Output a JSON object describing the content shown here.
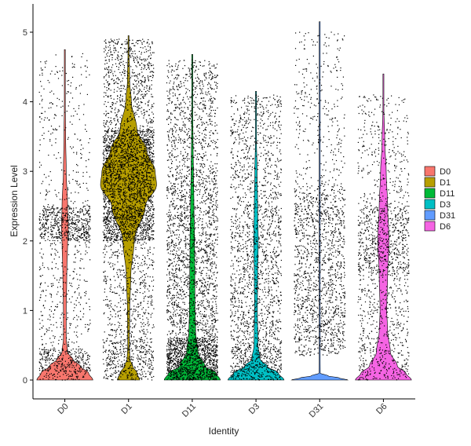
{
  "chart_data": {
    "type": "violin",
    "title": "",
    "xlabel": "Identity",
    "ylabel": "Expression Level",
    "ylim": [
      -0.3,
      5.4
    ],
    "yticks": [
      0,
      1,
      2,
      3,
      4,
      5
    ],
    "grid": false,
    "legend_position": "right",
    "categories": [
      "D0",
      "D1",
      "D11",
      "D3",
      "D31",
      "D6"
    ],
    "series": [
      {
        "name": "D0",
        "color": "#F8766D",
        "max": 4.75,
        "median": 0.05,
        "density_y": [
          0,
          0.1,
          0.2,
          0.3,
          0.4,
          0.6,
          1.0,
          1.5,
          2.0,
          2.2,
          2.5,
          3.0,
          3.5,
          4.0,
          4.75
        ],
        "density_w": [
          1.0,
          0.85,
          0.55,
          0.28,
          0.1,
          0.05,
          0.05,
          0.07,
          0.1,
          0.12,
          0.1,
          0.05,
          0.03,
          0.015,
          0.005
        ]
      },
      {
        "name": "D1",
        "color": "#B79F00",
        "max": 4.95,
        "median": 2.9,
        "density_y": [
          0,
          0.1,
          0.2,
          0.3,
          0.5,
          1.0,
          1.5,
          2.0,
          2.5,
          2.8,
          3.0,
          3.3,
          3.6,
          4.0,
          4.3,
          4.95
        ],
        "density_w": [
          0.4,
          0.3,
          0.15,
          0.05,
          0.03,
          0.04,
          0.08,
          0.2,
          0.6,
          1.0,
          0.95,
          0.65,
          0.3,
          0.1,
          0.04,
          0.005
        ]
      },
      {
        "name": "D11",
        "color": "#00BA38",
        "max": 4.68,
        "median": 0.1,
        "density_y": [
          0,
          0.1,
          0.2,
          0.4,
          0.7,
          1.0,
          1.5,
          2.0,
          2.5,
          3.0,
          3.5,
          4.0,
          4.68
        ],
        "density_w": [
          1.0,
          0.85,
          0.45,
          0.2,
          0.12,
          0.1,
          0.09,
          0.08,
          0.06,
          0.04,
          0.025,
          0.01,
          0.005
        ]
      },
      {
        "name": "D3",
        "color": "#00BFC4",
        "max": 4.15,
        "median": 0.05,
        "density_y": [
          0,
          0.1,
          0.2,
          0.3,
          0.5,
          1.0,
          1.5,
          2.0,
          2.5,
          3.0,
          3.5,
          4.15
        ],
        "density_w": [
          1.0,
          0.8,
          0.4,
          0.15,
          0.07,
          0.05,
          0.06,
          0.08,
          0.06,
          0.04,
          0.015,
          0.005
        ]
      },
      {
        "name": "D31",
        "color": "#619CFF",
        "max": 5.15,
        "median": 0.0,
        "density_y": [
          0,
          0.03,
          0.06,
          0.1,
          0.5,
          1.0,
          2.0,
          3.0,
          4.0,
          5.15
        ],
        "density_w": [
          1.0,
          0.7,
          0.3,
          0.02,
          0.01,
          0.01,
          0.008,
          0.006,
          0.005,
          0.003
        ]
      },
      {
        "name": "D6",
        "color": "#F564E3",
        "max": 4.4,
        "median": 0.1,
        "density_y": [
          0,
          0.1,
          0.2,
          0.4,
          0.7,
          1.0,
          1.5,
          2.0,
          2.5,
          3.0,
          3.4,
          4.0,
          4.4
        ],
        "density_w": [
          1.0,
          0.8,
          0.5,
          0.25,
          0.15,
          0.12,
          0.15,
          0.2,
          0.15,
          0.1,
          0.05,
          0.01,
          0.005
        ]
      }
    ],
    "points": [
      {
        "name": "D0",
        "count": 1500,
        "bands": [
          [
            0,
            0.45,
            0.25
          ],
          [
            0.45,
            2.0,
            0.2
          ],
          [
            2.0,
            2.5,
            0.38
          ],
          [
            2.5,
            4.7,
            0.17
          ]
        ]
      },
      {
        "name": "D1",
        "count": 4200,
        "bands": [
          [
            0,
            0.6,
            0.1
          ],
          [
            0.6,
            2.0,
            0.12
          ],
          [
            2.0,
            3.6,
            0.62
          ],
          [
            3.6,
            4.9,
            0.16
          ]
        ]
      },
      {
        "name": "D11",
        "count": 3600,
        "bands": [
          [
            0,
            0.6,
            0.35
          ],
          [
            0.6,
            3.0,
            0.45
          ],
          [
            3.0,
            4.6,
            0.2
          ]
        ]
      },
      {
        "name": "D3",
        "count": 2100,
        "bands": [
          [
            0,
            0.5,
            0.22
          ],
          [
            0.5,
            2.5,
            0.5
          ],
          [
            2.5,
            4.1,
            0.28
          ]
        ]
      },
      {
        "name": "D31",
        "count": 1700,
        "bands": [
          [
            0.35,
            1.5,
            0.4
          ],
          [
            1.5,
            2.8,
            0.42
          ],
          [
            2.8,
            5.0,
            0.18
          ]
        ]
      },
      {
        "name": "D6",
        "count": 1500,
        "bands": [
          [
            0,
            0.5,
            0.15
          ],
          [
            0.5,
            1.5,
            0.2
          ],
          [
            1.5,
            2.5,
            0.45
          ],
          [
            2.5,
            4.1,
            0.2
          ]
        ]
      }
    ]
  }
}
